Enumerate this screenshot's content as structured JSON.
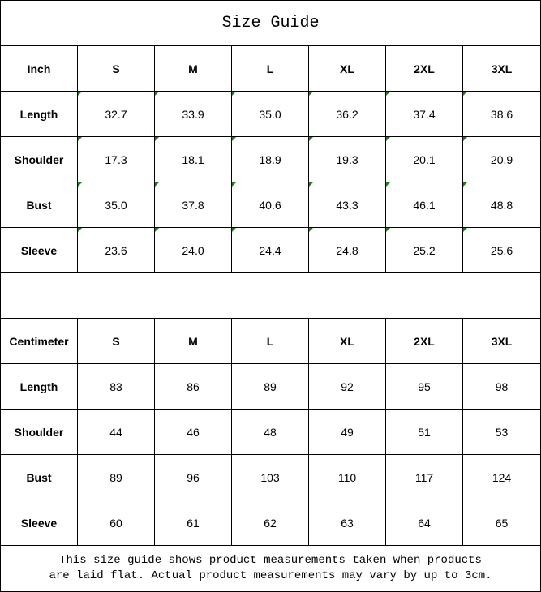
{
  "title": "Size Guide",
  "indicator_color": "#1a7f1a",
  "tables": [
    {
      "unit": "Inch",
      "sizes": [
        "S",
        "M",
        "L",
        "XL",
        "2XL",
        "3XL"
      ],
      "rows": [
        {
          "label": "Length",
          "values": [
            "32.7",
            "33.9",
            "35.0",
            "36.2",
            "37.4",
            "38.6"
          ]
        },
        {
          "label": "Shoulder",
          "values": [
            "17.3",
            "18.1",
            "18.9",
            "19.3",
            "20.1",
            "20.9"
          ]
        },
        {
          "label": "Bust",
          "values": [
            "35.0",
            "37.8",
            "40.6",
            "43.3",
            "46.1",
            "48.8"
          ]
        },
        {
          "label": "Sleeve",
          "values": [
            "23.6",
            "24.0",
            "24.4",
            "24.8",
            "25.2",
            "25.6"
          ]
        }
      ]
    },
    {
      "unit": "Centimeter",
      "sizes": [
        "S",
        "M",
        "L",
        "XL",
        "2XL",
        "3XL"
      ],
      "rows": [
        {
          "label": "Length",
          "values": [
            "83",
            "86",
            "89",
            "92",
            "95",
            "98"
          ]
        },
        {
          "label": "Shoulder",
          "values": [
            "44",
            "46",
            "48",
            "49",
            "51",
            "53"
          ]
        },
        {
          "label": "Bust",
          "values": [
            "89",
            "96",
            "103",
            "110",
            "117",
            "124"
          ]
        },
        {
          "label": "Sleeve",
          "values": [
            "60",
            "61",
            "62",
            "63",
            "64",
            "65"
          ]
        }
      ]
    }
  ],
  "note_line1": "This size guide shows product measurements taken when products",
  "note_line2": "are laid flat. Actual product measurements may vary by up to 3cm."
}
